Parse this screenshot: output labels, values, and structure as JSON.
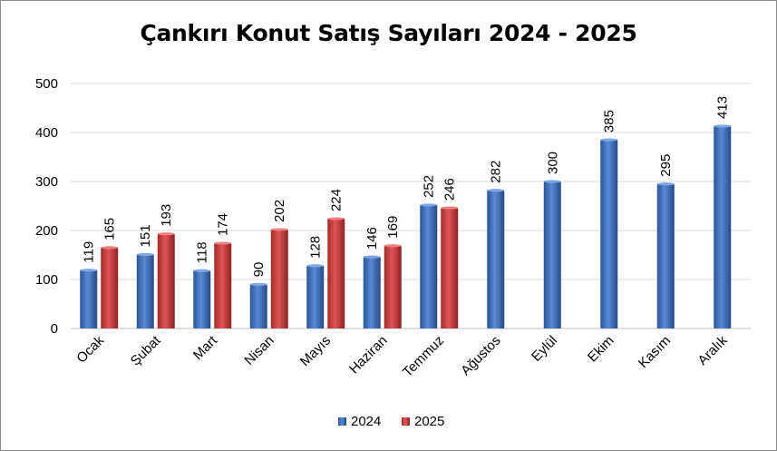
{
  "chart_data": {
    "type": "bar",
    "title": "Çankırı Konut Satış Sayıları 2024 - 2025",
    "xlabel": "",
    "ylabel": "",
    "categories": [
      "Ocak",
      "Şubat",
      "Mart",
      "Nisan",
      "Mayıs",
      "Haziran",
      "Temmuz",
      "Ağustos",
      "Eylül",
      "Ekim",
      "Kasım",
      "Aralık"
    ],
    "series": [
      {
        "name": "2024",
        "color": "#3f73bf",
        "values": [
          119,
          151,
          118,
          90,
          128,
          146,
          252,
          282,
          300,
          385,
          295,
          413
        ]
      },
      {
        "name": "2025",
        "color": "#c83c3c",
        "values": [
          165,
          193,
          174,
          202,
          224,
          169,
          246,
          null,
          null,
          null,
          null,
          null
        ]
      }
    ],
    "ylim": [
      0,
      500
    ],
    "yticks": [
      0,
      100,
      200,
      300,
      400,
      500
    ],
    "grid": true,
    "legend_position": "bottom"
  }
}
